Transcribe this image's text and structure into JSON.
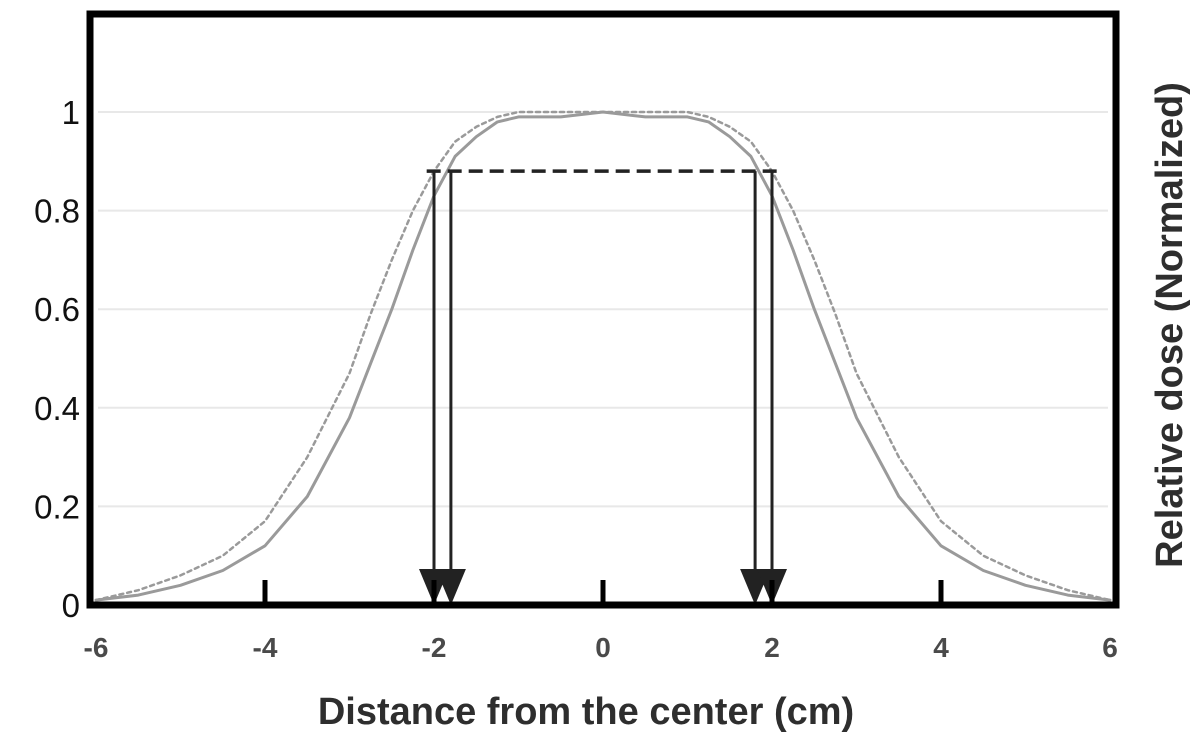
{
  "chart_data": {
    "type": "line",
    "title": "",
    "xlabel": "Distance from the center (cm)",
    "ylabel": "Relative dose (Normalized)",
    "xlim": [
      -6,
      6
    ],
    "ylim": [
      0,
      1.2
    ],
    "x_ticks": [
      -6,
      -4,
      -2,
      0,
      2,
      4,
      6
    ],
    "x_tick_labels": [
      "-6",
      "-4",
      "-2",
      "0",
      "2",
      "4",
      "6"
    ],
    "y_ticks": [
      0,
      0.2,
      0.4,
      0.6,
      0.8,
      1
    ],
    "y_tick_labels": [
      "0",
      "0.2",
      "0.4",
      "0.6",
      "0.8",
      "1"
    ],
    "grid": "horizontal",
    "legend": "none",
    "colors": {
      "solid": "#9a9a9a",
      "dotted": "#9a9a9a",
      "grid": "#e8e8e8",
      "annotation": "#222222",
      "frame": "#000000"
    },
    "series": [
      {
        "style": "solid",
        "x": [
          -6,
          -5.5,
          -5,
          -4.5,
          -4,
          -3.5,
          -3,
          -2.75,
          -2.5,
          -2.25,
          -2,
          -1.75,
          -1.5,
          -1.25,
          -1,
          -0.5,
          0,
          0.5,
          1,
          1.25,
          1.5,
          1.75,
          2,
          2.25,
          2.5,
          2.75,
          3,
          3.5,
          4,
          4.5,
          5,
          5.5,
          6
        ],
        "y": [
          0.01,
          0.02,
          0.04,
          0.07,
          0.12,
          0.22,
          0.38,
          0.49,
          0.6,
          0.72,
          0.83,
          0.91,
          0.95,
          0.98,
          0.99,
          0.99,
          1.0,
          0.99,
          0.99,
          0.98,
          0.95,
          0.91,
          0.83,
          0.72,
          0.6,
          0.49,
          0.38,
          0.22,
          0.12,
          0.07,
          0.04,
          0.02,
          0.01
        ]
      },
      {
        "style": "dotted",
        "x": [
          -6,
          -5.5,
          -5,
          -4.5,
          -4,
          -3.5,
          -3,
          -2.75,
          -2.5,
          -2.25,
          -2,
          -1.75,
          -1.5,
          -1.25,
          -1,
          -0.5,
          0,
          0.5,
          1,
          1.25,
          1.5,
          1.75,
          2,
          2.25,
          2.5,
          2.75,
          3,
          3.5,
          4,
          4.5,
          5,
          5.5,
          6
        ],
        "y": [
          0.01,
          0.03,
          0.06,
          0.1,
          0.17,
          0.3,
          0.47,
          0.59,
          0.7,
          0.8,
          0.88,
          0.94,
          0.97,
          0.99,
          1.0,
          1.0,
          1.0,
          1.0,
          1.0,
          0.99,
          0.97,
          0.94,
          0.88,
          0.8,
          0.7,
          0.59,
          0.47,
          0.3,
          0.17,
          0.1,
          0.06,
          0.03,
          0.01
        ]
      }
    ],
    "annotations": {
      "dashed_line": {
        "x": [
          -1.85,
          1.85
        ],
        "y": 0.88
      },
      "arrows": [
        {
          "x": -2.0,
          "y_from": 0.88,
          "y_to": 0.0
        },
        {
          "x": -1.8,
          "y_from": 0.88,
          "y_to": 0.0
        },
        {
          "x": 1.8,
          "y_from": 0.88,
          "y_to": 0.0
        },
        {
          "x": 2.0,
          "y_from": 0.88,
          "y_to": 0.0
        }
      ]
    }
  }
}
